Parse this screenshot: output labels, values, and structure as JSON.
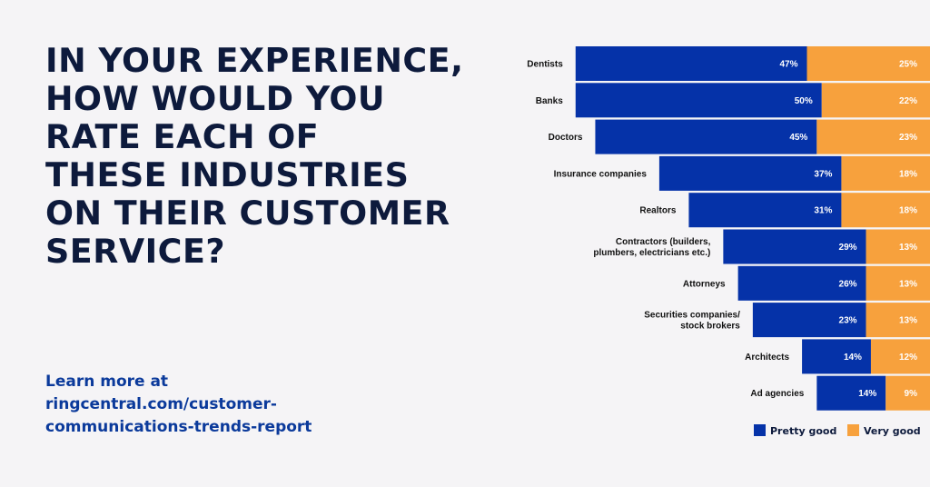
{
  "headline": {
    "lines": [
      "IN YOUR EXPERIENCE,",
      "HOW WOULD YOU",
      "RATE EACH OF",
      "THESE INDUSTRIES",
      "ON THEIR CUSTOMER",
      "SERVICE?"
    ]
  },
  "cta": {
    "lines": [
      "Learn more at",
      "ringcentral.com/customer-",
      "communications-trends-report"
    ]
  },
  "colors": {
    "pretty_good": "#0532a8",
    "very_good": "#f7a13d",
    "background": "#f5f4f6",
    "title": "#0d1a3c",
    "cta": "#0b3a9b"
  },
  "chart_data": {
    "type": "bar",
    "orientation": "horizontal-stacked",
    "title": "In your experience, how would you rate each of these industries on their customer service?",
    "categories": [
      [
        "Dentists"
      ],
      [
        "Banks"
      ],
      [
        "Doctors"
      ],
      [
        "Insurance companies"
      ],
      [
        "Realtors"
      ],
      [
        "Contractors (builders,",
        "plumbers, electricians etc.)"
      ],
      [
        "Attorneys"
      ],
      [
        "Securities companies/",
        "stock brokers"
      ],
      [
        "Architects"
      ],
      [
        "Ad agencies"
      ]
    ],
    "series": [
      {
        "name": "Pretty good",
        "values": [
          47,
          50,
          45,
          37,
          31,
          29,
          26,
          23,
          14,
          14
        ]
      },
      {
        "name": "Very good",
        "values": [
          25,
          22,
          23,
          18,
          18,
          13,
          13,
          13,
          12,
          9
        ]
      }
    ],
    "value_suffix": "%",
    "legend": {
      "position": "bottom-right",
      "entries": [
        "Pretty good",
        "Very good"
      ]
    },
    "grid": false,
    "xlabel": "",
    "ylabel": ""
  }
}
